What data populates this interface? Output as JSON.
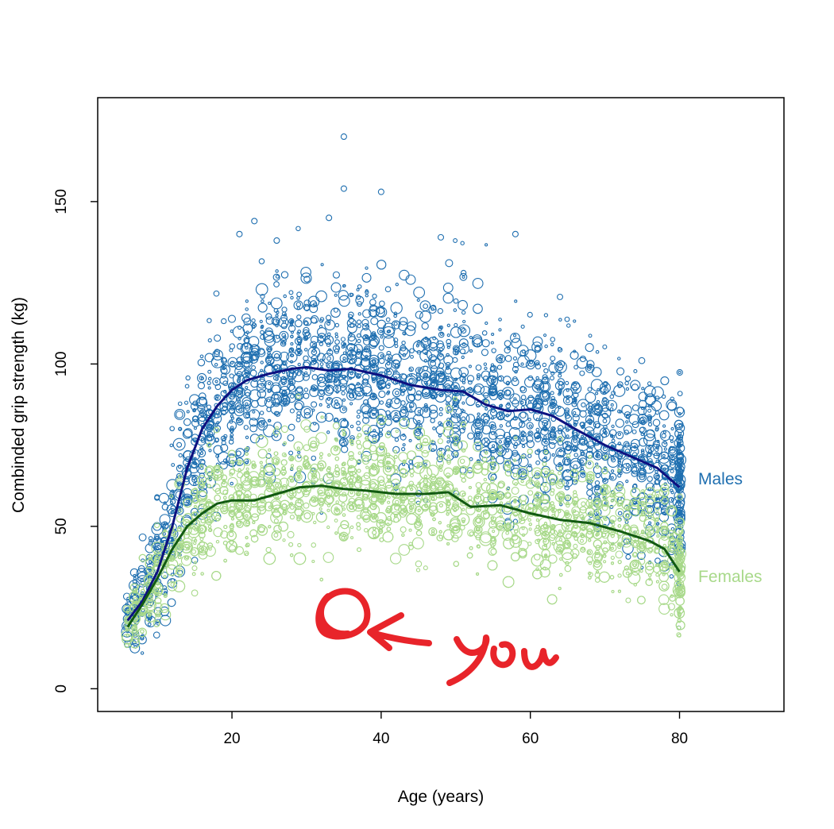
{
  "chart_data": {
    "type": "scatter",
    "title": "",
    "xlabel": "Age (years)",
    "ylabel": "Combinded grip strength (kg)",
    "xlim": [
      2,
      94
    ],
    "ylim": [
      -7,
      182
    ],
    "x_ticks": [
      20,
      40,
      60,
      80
    ],
    "y_ticks": [
      0,
      50,
      100,
      150
    ],
    "grid": false,
    "legend": "direct-labels-right",
    "series": [
      {
        "name": "Males",
        "color": "#1f6fb0",
        "smooth_color": "#0d1180",
        "smooth": [
          {
            "x": 6,
            "y": 21
          },
          {
            "x": 8,
            "y": 27
          },
          {
            "x": 10,
            "y": 36
          },
          {
            "x": 12,
            "y": 50
          },
          {
            "x": 14,
            "y": 68
          },
          {
            "x": 16,
            "y": 80
          },
          {
            "x": 18,
            "y": 87
          },
          {
            "x": 20,
            "y": 92
          },
          {
            "x": 22,
            "y": 95
          },
          {
            "x": 25,
            "y": 97
          },
          {
            "x": 28,
            "y": 98.5
          },
          {
            "x": 30,
            "y": 99
          },
          {
            "x": 33,
            "y": 98
          },
          {
            "x": 36,
            "y": 98.5
          },
          {
            "x": 40,
            "y": 96.5
          },
          {
            "x": 44,
            "y": 93.5
          },
          {
            "x": 48,
            "y": 92
          },
          {
            "x": 51,
            "y": 91.5
          },
          {
            "x": 54,
            "y": 87.5
          },
          {
            "x": 57,
            "y": 85.5
          },
          {
            "x": 60,
            "y": 86
          },
          {
            "x": 63,
            "y": 84
          },
          {
            "x": 66,
            "y": 80
          },
          {
            "x": 70,
            "y": 75
          },
          {
            "x": 74,
            "y": 71
          },
          {
            "x": 77,
            "y": 68
          },
          {
            "x": 80,
            "y": 62
          }
        ],
        "outliers": [
          {
            "x": 35,
            "y": 170
          },
          {
            "x": 35,
            "y": 154
          },
          {
            "x": 40,
            "y": 153
          },
          {
            "x": 33,
            "y": 145
          },
          {
            "x": 23,
            "y": 144
          },
          {
            "x": 58,
            "y": 140
          },
          {
            "x": 26,
            "y": 138
          },
          {
            "x": 48,
            "y": 139
          },
          {
            "x": 21,
            "y": 140
          }
        ]
      },
      {
        "name": "Females",
        "color": "#a8d98a",
        "smooth_color": "#125a12",
        "smooth": [
          {
            "x": 6,
            "y": 19
          },
          {
            "x": 8,
            "y": 26
          },
          {
            "x": 10,
            "y": 34
          },
          {
            "x": 12,
            "y": 43
          },
          {
            "x": 14,
            "y": 50
          },
          {
            "x": 16,
            "y": 54
          },
          {
            "x": 18,
            "y": 57
          },
          {
            "x": 20,
            "y": 58
          },
          {
            "x": 23,
            "y": 58
          },
          {
            "x": 26,
            "y": 60
          },
          {
            "x": 29,
            "y": 62
          },
          {
            "x": 32,
            "y": 62.5
          },
          {
            "x": 35,
            "y": 61.5
          },
          {
            "x": 38,
            "y": 61
          },
          {
            "x": 42,
            "y": 60
          },
          {
            "x": 46,
            "y": 60
          },
          {
            "x": 49,
            "y": 60.5
          },
          {
            "x": 52,
            "y": 56
          },
          {
            "x": 56,
            "y": 56.5
          },
          {
            "x": 60,
            "y": 54
          },
          {
            "x": 64,
            "y": 52
          },
          {
            "x": 68,
            "y": 51
          },
          {
            "x": 72,
            "y": 48.5
          },
          {
            "x": 76,
            "y": 45.5
          },
          {
            "x": 78,
            "y": 43
          },
          {
            "x": 80,
            "y": 36
          }
        ]
      }
    ]
  },
  "annotation": {
    "text": "you",
    "color": "#e8242a"
  }
}
